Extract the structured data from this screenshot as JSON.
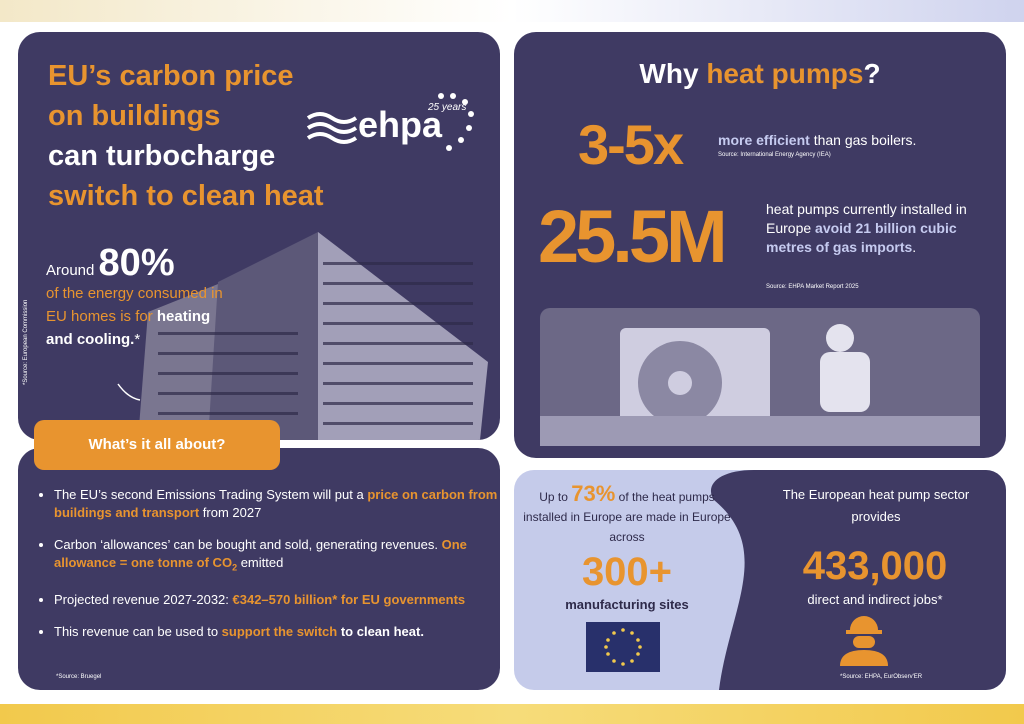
{
  "left_panel": {
    "title_lines": [
      "EU’s carbon price",
      "on buildings",
      "can turbocharge",
      "switch to clean heat"
    ],
    "logo": {
      "name": "ehpa",
      "anniversary": "25 years"
    },
    "stat": {
      "prefix": "Around",
      "value": "80%",
      "text": "of the energy consumed in EU homes is for",
      "highlight": "heating and cooling.",
      "mark": "*"
    },
    "source": "*Source: European Commission"
  },
  "about": {
    "button": "What’s it all about?",
    "bullets": [
      [
        "The EU’s second Emissions Trading System will put a ",
        "price on carbon from buildings and transport",
        " from 2027"
      ],
      [
        "Carbon ‘allowances’ can be bought and sold, generating revenues. ",
        "One allowance = one tonne of CO",
        "2",
        " emitted"
      ],
      [
        "Projected revenue 2027-2032: ",
        "€342–570 billion* for EU governments"
      ],
      [
        "This revenue can be used to ",
        "support the switch",
        " to clean heat."
      ]
    ],
    "source": "*Source: Bruegel"
  },
  "why": {
    "title": [
      "Why ",
      "heat pumps",
      "?"
    ],
    "efficiency": {
      "value": "3-5x",
      "highlight": "more efficient",
      "text": " than gas boilers.",
      "source": "Source: International Energy Agency (IEA)"
    },
    "installed": {
      "value": "25.5M",
      "text": "heat pumps currently installed in Europe ",
      "highlight": "avoid 21 billion cubic metres of gas imports",
      "end": ".",
      "source": "Source: EHPA Market Report 2025"
    }
  },
  "made_in_europe": {
    "prefix": "Up to",
    "value": "73%",
    "text": "of the heat pumps installed in Europe are made in Europe across",
    "sites": "300+",
    "sites_label": "manufacturing sites"
  },
  "jobs": {
    "intro": "The European heat pump sector provides",
    "value": "433,000",
    "label": "direct and indirect jobs*",
    "source": "*Source: EHPA, EurObserv'ER"
  }
}
